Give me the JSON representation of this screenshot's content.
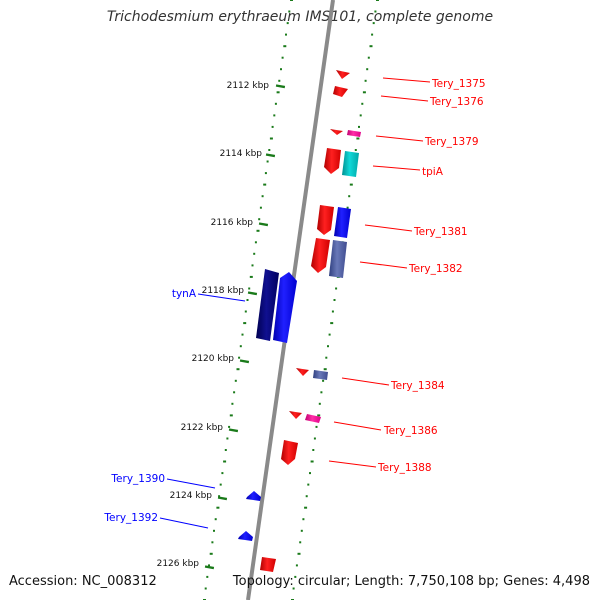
{
  "title": "Trichodesmium erythraeum IMS101, complete genome",
  "accession": "Accession: NC_008312",
  "topology": "Topology: circular; Length: 7,750,108 bp; Genes: 4,498",
  "colors": {
    "strand_red": "#ff0000",
    "strand_blue": "#0000ff",
    "navy": "#000080",
    "cyan": "#00c0c0",
    "magenta": "#ff0099",
    "steel": "#5060a0",
    "track_green": "#1a7a1a",
    "backbone": "#8a8a8a"
  },
  "ruler_labels": [
    {
      "id": "2112",
      "label": "2112 kbp"
    },
    {
      "id": "2114",
      "label": "2114 kbp"
    },
    {
      "id": "2116",
      "label": "2116 kbp"
    },
    {
      "id": "2118",
      "label": "2118 kbp"
    },
    {
      "id": "2120",
      "label": "2120 kbp"
    },
    {
      "id": "2122",
      "label": "2122 kbp"
    },
    {
      "id": "2124",
      "label": "2124 kbp"
    },
    {
      "id": "2126",
      "label": "2126 kbp"
    }
  ],
  "gene_labels": [
    {
      "id": "tery-1375",
      "label": "Tery_1375",
      "strand": "forward"
    },
    {
      "id": "tery-1376",
      "label": "Tery_1376",
      "strand": "forward"
    },
    {
      "id": "tery-1379",
      "label": "Tery_1379",
      "strand": "forward"
    },
    {
      "id": "tpia",
      "label": "tpiA",
      "strand": "forward"
    },
    {
      "id": "tery-1381",
      "label": "Tery_1381",
      "strand": "forward"
    },
    {
      "id": "tery-1382",
      "label": "Tery_1382",
      "strand": "forward"
    },
    {
      "id": "tyna",
      "label": "tynA",
      "strand": "reverse"
    },
    {
      "id": "tery-1384",
      "label": "Tery_1384",
      "strand": "forward"
    },
    {
      "id": "tery-1386",
      "label": "Tery_1386",
      "strand": "forward"
    },
    {
      "id": "tery-1388",
      "label": "Tery_1388",
      "strand": "forward"
    },
    {
      "id": "tery-1390",
      "label": "Tery_1390",
      "strand": "reverse"
    },
    {
      "id": "tery-1392",
      "label": "Tery_1392",
      "strand": "reverse"
    }
  ]
}
